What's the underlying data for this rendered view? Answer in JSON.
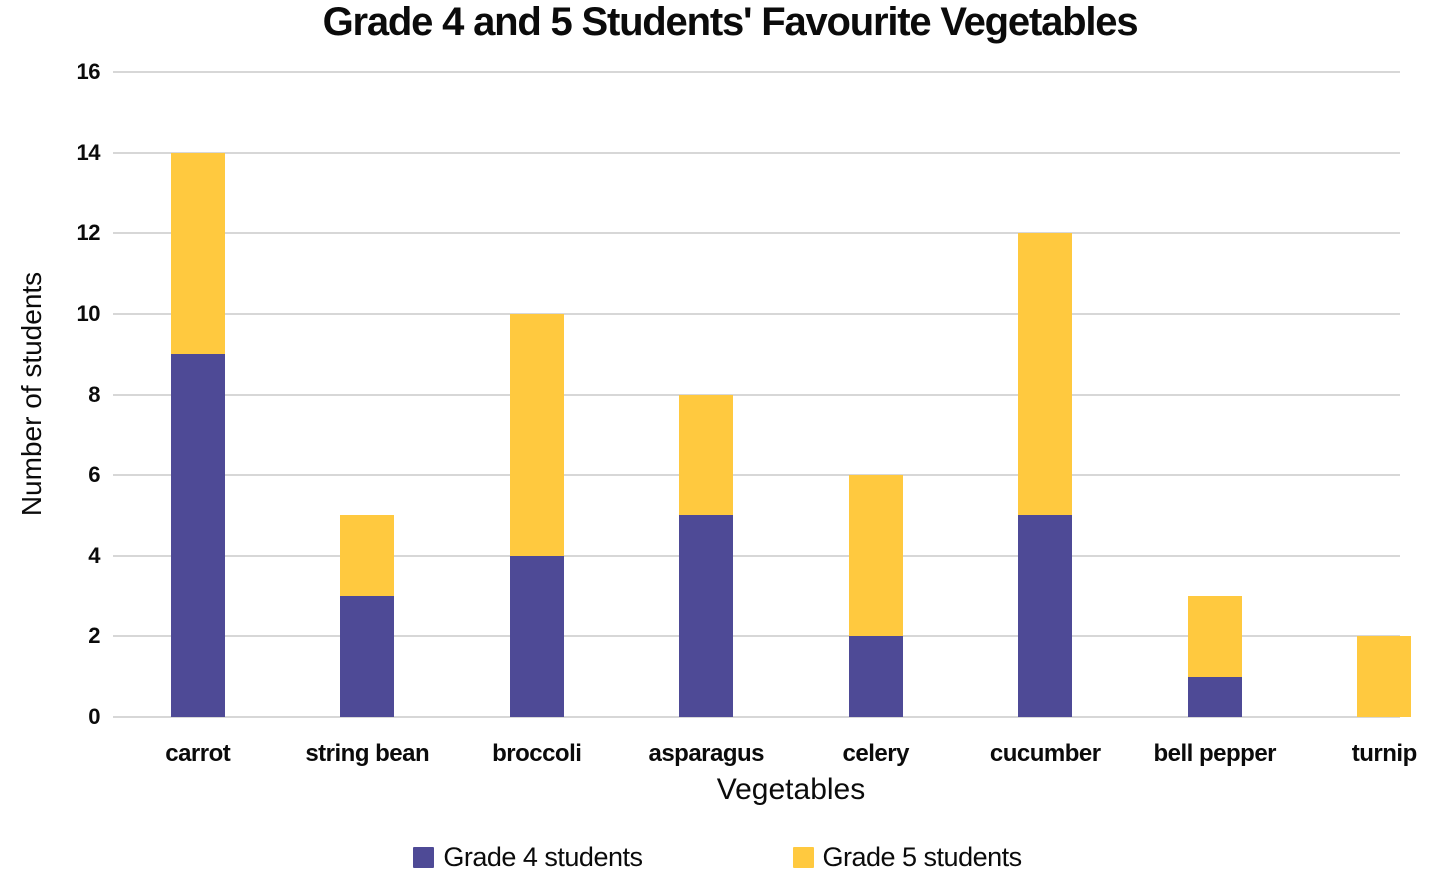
{
  "chart_data": {
    "type": "bar",
    "stacked": true,
    "title": "Grade 4 and 5 Students' Favourite Vegetables",
    "xlabel": "Vegetables",
    "ylabel": "Number of students",
    "categories": [
      "carrot",
      "string bean",
      "broccoli",
      "asparagus",
      "celery",
      "cucumber",
      "bell pepper",
      "turnip"
    ],
    "series": [
      {
        "name": "Grade 4 students",
        "color": "#4E4A96",
        "values": [
          9,
          3,
          4,
          5,
          2,
          5,
          1,
          0
        ]
      },
      {
        "name": "Grade 5 students",
        "color": "#FFC93F",
        "values": [
          5,
          2,
          6,
          3,
          4,
          7,
          2,
          2
        ]
      }
    ],
    "ylim": [
      0,
      16
    ],
    "ytick_step": 2,
    "grid": true,
    "gridline_color": "#D7D7D7",
    "legend_position": "bottom",
    "text_color": "#0B0B0B",
    "background_color": "#FFFFFF"
  }
}
